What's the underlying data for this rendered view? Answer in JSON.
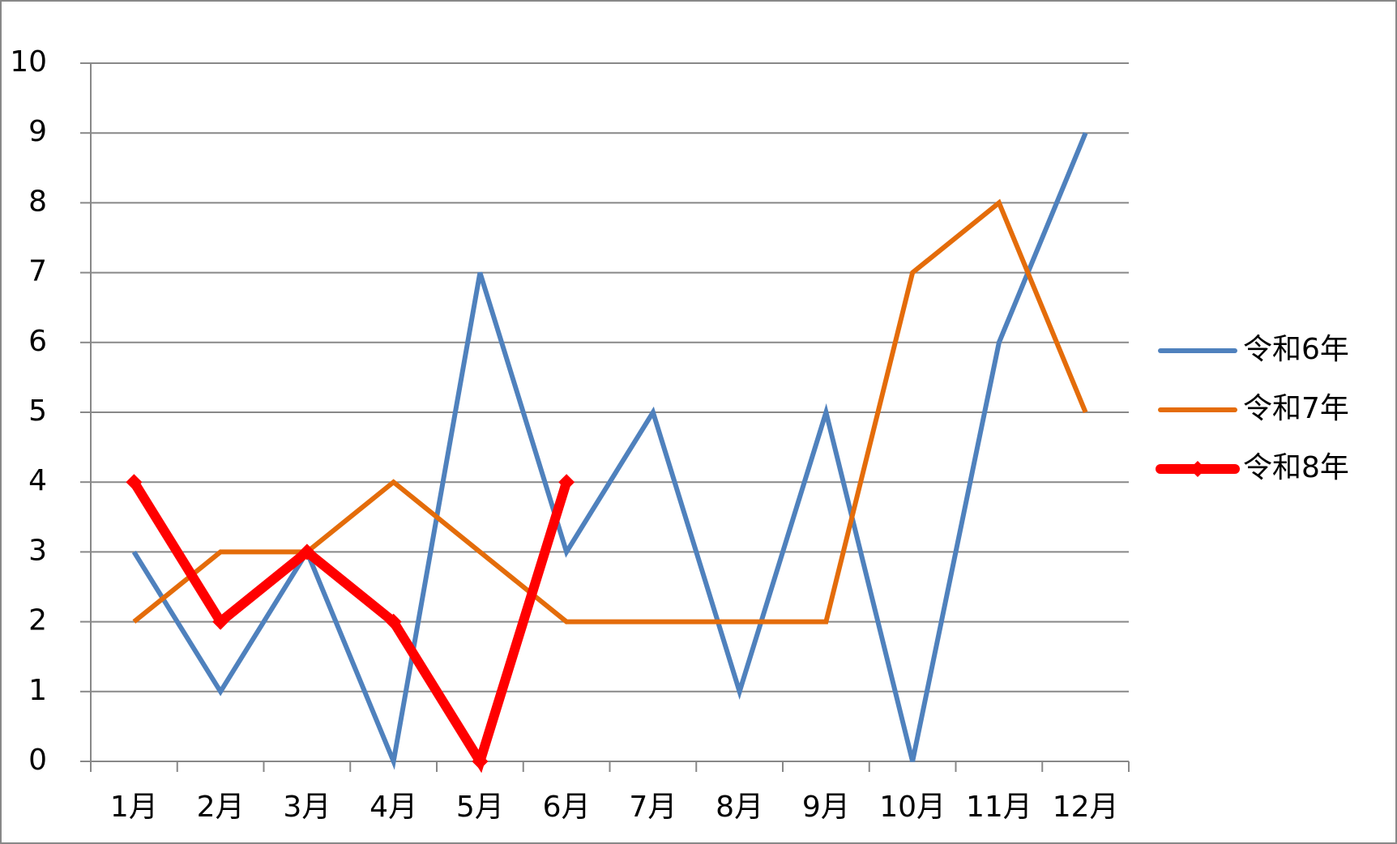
{
  "chart_data": {
    "type": "line",
    "categories": [
      "1月",
      "2月",
      "3月",
      "4月",
      "5月",
      "6月",
      "7月",
      "8月",
      "9月",
      "10月",
      "11月",
      "12月"
    ],
    "series": [
      {
        "name": "令和6年",
        "color": "#4f81bd",
        "values": [
          3,
          1,
          3,
          0,
          7,
          3,
          5,
          1,
          5,
          0,
          6,
          9
        ]
      },
      {
        "name": "令和7年",
        "color": "#e46c0a",
        "values": [
          2,
          3,
          3,
          4,
          3,
          2,
          2,
          2,
          2,
          7,
          8,
          5
        ]
      },
      {
        "name": "令和8年",
        "color": "#ff0000",
        "values": [
          4,
          2,
          3,
          2,
          0,
          4,
          null,
          null,
          null,
          null,
          null,
          null
        ]
      }
    ],
    "ylim": [
      0,
      10
    ],
    "yticks": [
      0,
      1,
      2,
      3,
      4,
      5,
      6,
      7,
      8,
      9,
      10
    ],
    "grid": true,
    "legend": "right"
  }
}
